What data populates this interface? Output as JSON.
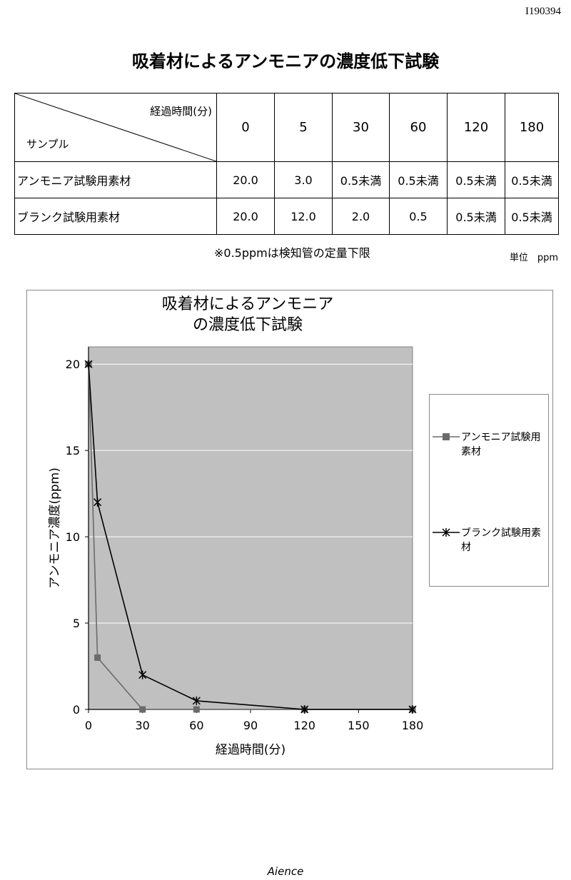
{
  "doc_id": "I190394",
  "page_title": "吸着材によるアンモニアの濃度低下試験",
  "table": {
    "corner_top": "経過時間(分)",
    "corner_bottom": "サンプル",
    "columns": [
      "0",
      "5",
      "30",
      "60",
      "120",
      "180"
    ],
    "rows": [
      {
        "label": "アンモニア試験用素材",
        "values": [
          "20.0",
          "3.0",
          "0.5未満",
          "0.5未満",
          "0.5未満",
          "0.5未満"
        ]
      },
      {
        "label": "ブランク試験用素材",
        "values": [
          "20.0",
          "12.0",
          "2.0",
          "0.5",
          "0.5未満",
          "0.5未満"
        ]
      }
    ],
    "note": "※0.5ppmは検知管の定量下限",
    "unit": "単位　ppm"
  },
  "chart_data": {
    "type": "line",
    "title_lines": [
      "吸着材によるアンモニア",
      "の濃度低下試験"
    ],
    "xlabel": "経過時間(分)",
    "ylabel": "アンモニア濃度(ppm)",
    "xlim": [
      0,
      180
    ],
    "ylim": [
      0,
      21
    ],
    "x_ticks": [
      0,
      30,
      60,
      90,
      120,
      150,
      180
    ],
    "y_ticks": [
      0,
      5,
      10,
      15,
      20
    ],
    "grid": "horizontal",
    "plot_background": "#c0c0c0",
    "legend_position": "right",
    "series": [
      {
        "name": "アンモニア試験用素材",
        "name_lines": [
          "アンモニア試験用",
          "素材"
        ],
        "marker": "square",
        "color": "#6b6b6b",
        "x": [
          0,
          5,
          30,
          60,
          120,
          180
        ],
        "y": [
          20,
          3,
          0,
          0,
          0,
          0
        ]
      },
      {
        "name": "ブランク試験用素材",
        "name_lines": [
          "ブランク試験用素",
          "材"
        ],
        "marker": "star",
        "color": "#000000",
        "x": [
          0,
          5,
          30,
          60,
          120,
          180
        ],
        "y": [
          20,
          12,
          2,
          0.5,
          0,
          0
        ]
      }
    ]
  },
  "footer": "Aience"
}
